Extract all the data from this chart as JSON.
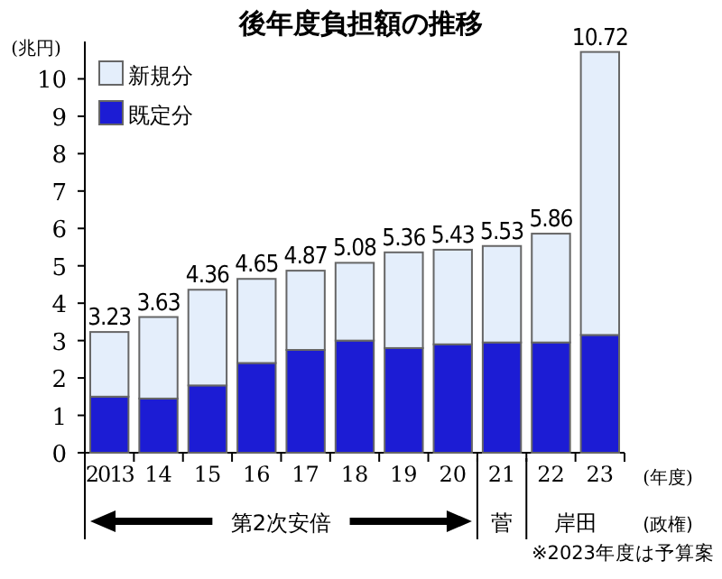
{
  "chart_data": {
    "type": "bar",
    "stacked": true,
    "title": "後年度負担額の推移",
    "ylabel": "(兆円)",
    "xlabel": "(年度)",
    "categories": [
      "2013",
      "14",
      "15",
      "16",
      "17",
      "18",
      "19",
      "20",
      "21",
      "22",
      "23"
    ],
    "series": [
      {
        "name": "既定分",
        "color": "#1c1cd4",
        "values": [
          1.5,
          1.45,
          1.8,
          2.4,
          2.75,
          3.0,
          2.8,
          2.9,
          2.95,
          2.95,
          3.15
        ]
      },
      {
        "name": "新規分",
        "color": "#e4eefb",
        "values": [
          1.73,
          2.18,
          2.56,
          2.25,
          2.12,
          2.08,
          2.56,
          2.53,
          2.58,
          2.91,
          7.57
        ]
      }
    ],
    "totals": [
      "3.23",
      "3.63",
      "4.36",
      "4.65",
      "4.87",
      "5.08",
      "5.36",
      "5.43",
      "5.53",
      "5.86",
      "10.72"
    ],
    "ylim": [
      0,
      11
    ],
    "yticks": [
      0,
      1,
      2,
      3,
      4,
      5,
      6,
      7,
      8,
      9,
      10
    ],
    "legend": "top left",
    "grid": false,
    "annotations": [
      "第2次安倍",
      "菅",
      "岸田",
      "(政権)",
      "※2023年度は予算案"
    ]
  }
}
